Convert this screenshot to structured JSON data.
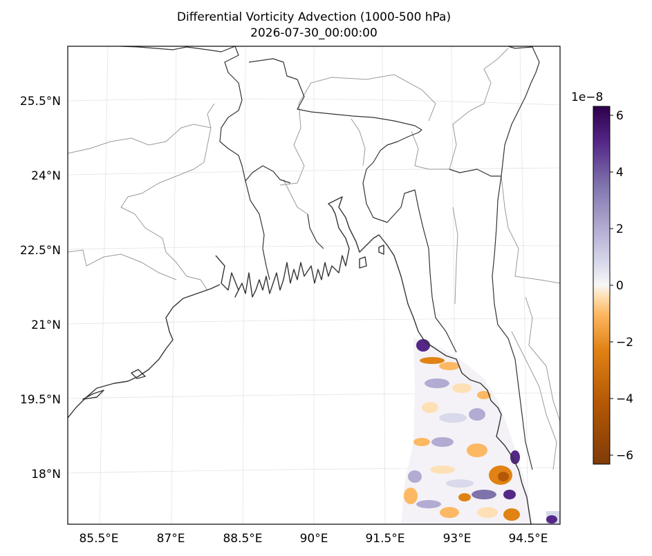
{
  "title": {
    "line1": "Differential Vorticity Advection (1000-500 hPa)",
    "line2": "2026-07-30_00:00:00"
  },
  "axes": {
    "lon_ticks": [
      "85.5°E",
      "87°E",
      "88.5°E",
      "90°E",
      "91.5°E",
      "93°E",
      "94.5°E"
    ],
    "lat_ticks": [
      "25.5°N",
      "24°N",
      "22.5°N",
      "21°N",
      "19.5°N",
      "18°N"
    ]
  },
  "colorbar": {
    "exponent": "1e−8",
    "ticks": [
      "6",
      "4",
      "2",
      "0",
      "−2",
      "−4",
      "−6"
    ],
    "range": [
      -6.3,
      6.3
    ],
    "colormap": "PuOr",
    "colors": {
      "max": "#2d004b",
      "high": "#8073ac",
      "mid_high": "#d8daeb",
      "zero": "#f7f7f7",
      "mid_low": "#fee0b6",
      "low": "#e08214",
      "min": "#7f3b08"
    }
  },
  "map": {
    "extent": {
      "lon": [
        84.85,
        94.85
      ],
      "lat": [
        17.05,
        26.1
      ]
    },
    "coastline_color": "#333333",
    "border_color": "#999999",
    "gridline_color": "#e3e3e3"
  }
}
